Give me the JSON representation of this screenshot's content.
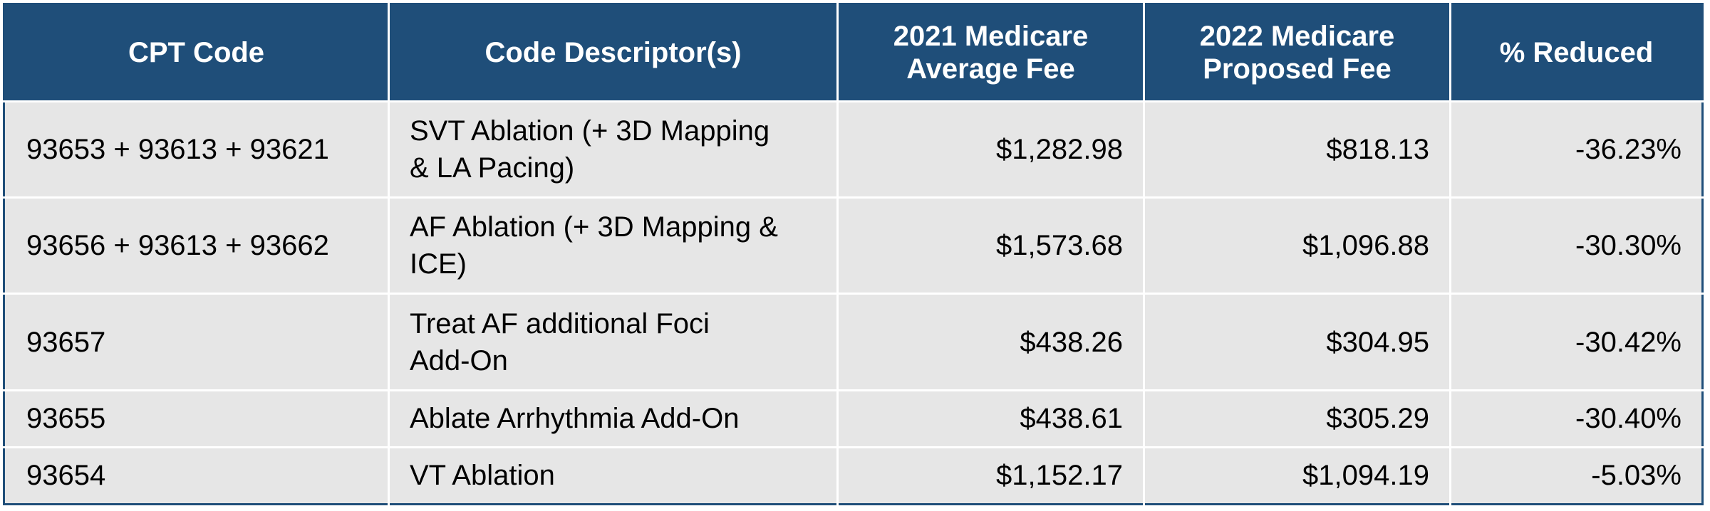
{
  "table": {
    "headers": [
      "CPT Code",
      "Code Descriptor(s)",
      "2021 Medicare Average Fee",
      "2022 Medicare Proposed Fee",
      "% Reduced"
    ],
    "rows": [
      {
        "code": "93653 + 93613 + 93621",
        "descriptor": "SVT Ablation (+ 3D Mapping & LA Pacing)",
        "fee_2021": "$1,282.98",
        "fee_2022": "$818.13",
        "reduced": "-36.23%"
      },
      {
        "code": "93656 + 93613 + 93662",
        "descriptor": "AF Ablation (+ 3D Mapping & ICE)",
        "fee_2021": "$1,573.68",
        "fee_2022": "$1,096.88",
        "reduced": "-30.30%"
      },
      {
        "code": "93657",
        "descriptor": "Treat AF additional Foci Add-On",
        "fee_2021": "$438.26",
        "fee_2022": "$304.95",
        "reduced": "-30.42%"
      },
      {
        "code": "93655",
        "descriptor": "Ablate Arrhythmia Add-On",
        "fee_2021": "$438.61",
        "fee_2022": "$305.29",
        "reduced": "-30.40%"
      },
      {
        "code": "93654",
        "descriptor": "VT Ablation",
        "fee_2021": "$1,152.17",
        "fee_2022": "$1,094.19",
        "reduced": "-5.03%"
      }
    ]
  },
  "colors": {
    "header_bg": "#1f4e79",
    "header_text": "#ffffff",
    "cell_bg": "#e6e6e6",
    "grid": "#ffffff"
  }
}
